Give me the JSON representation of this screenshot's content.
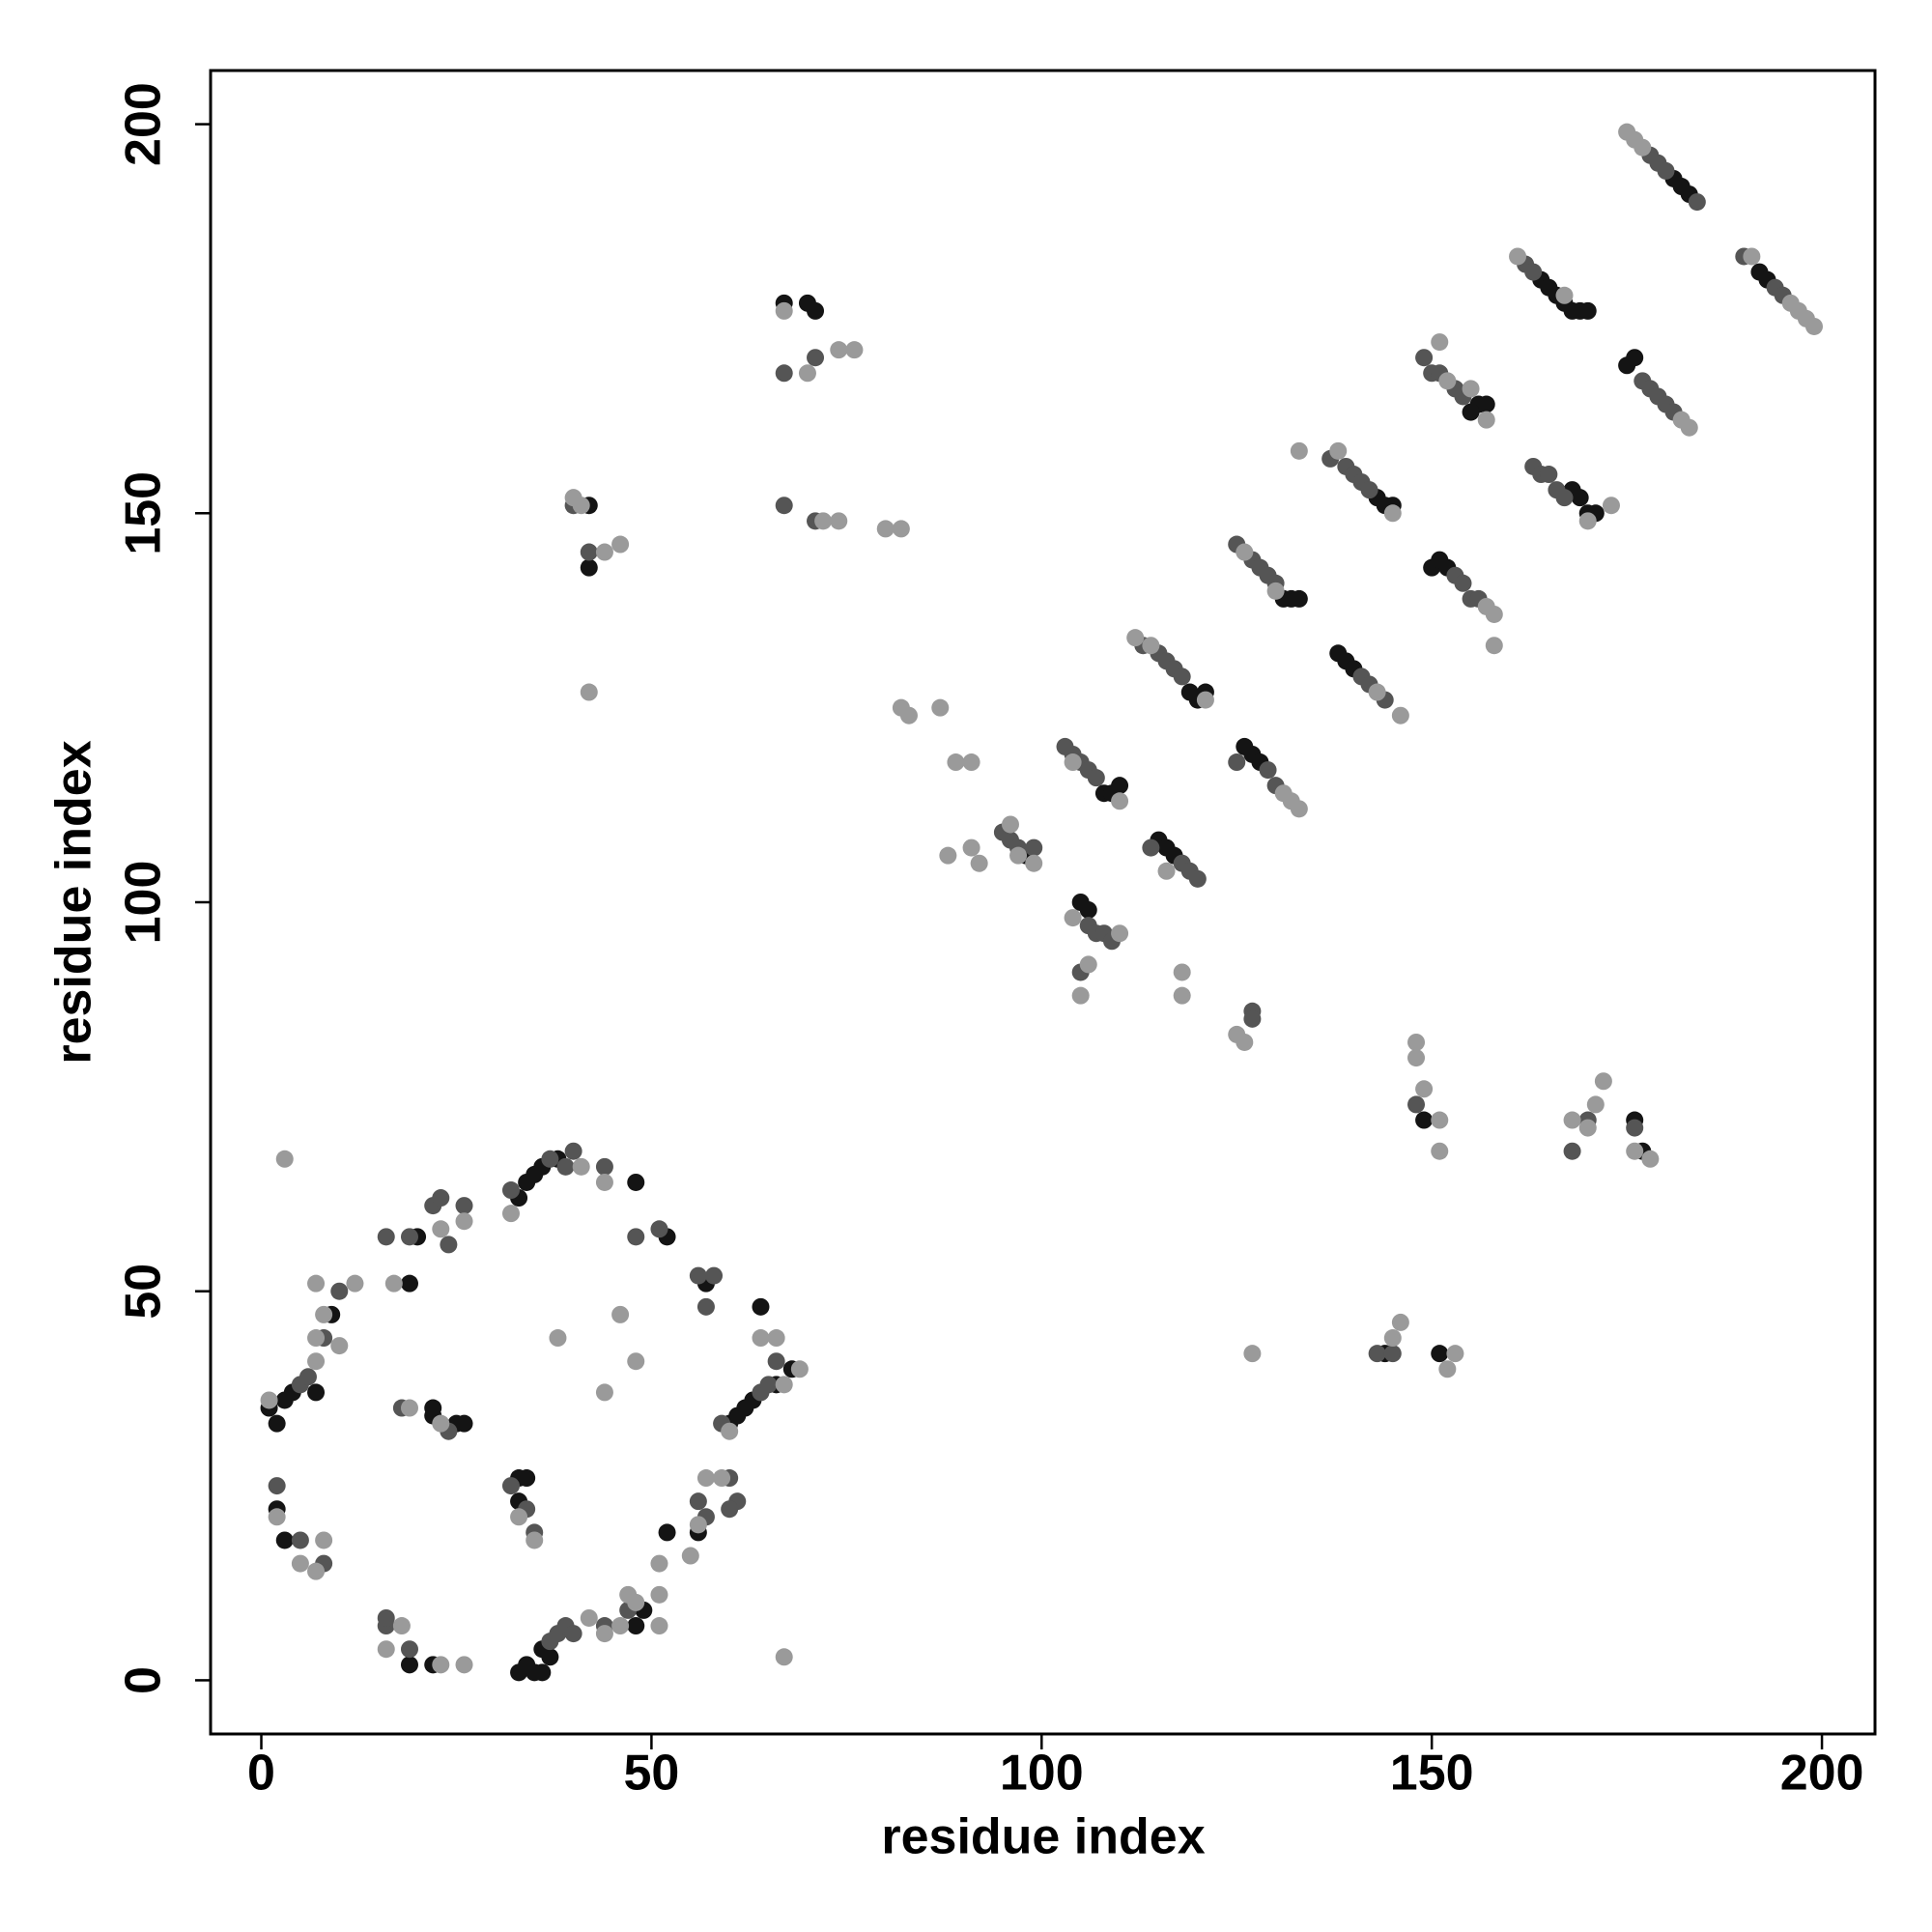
{
  "chart_data": {
    "type": "scatter",
    "xlabel": "residue index",
    "ylabel": "residue index",
    "xlim": [
      -6.5,
      206.8
    ],
    "ylim": [
      -6.9,
      206.9
    ],
    "xticks": [
      0,
      50,
      100,
      150,
      200
    ],
    "yticks": [
      0,
      50,
      100,
      150,
      200
    ],
    "series": [
      {
        "color": "#141414",
        "x": [
          181,
          182,
          183,
          192,
          193,
          164,
          165,
          166,
          167,
          168,
          169,
          170,
          156,
          157,
          155,
          175,
          176,
          143,
          144,
          145,
          168,
          169,
          170,
          171,
          131,
          132,
          133,
          150,
          151,
          152,
          119,
          120,
          121,
          138,
          139,
          140,
          108,
          109,
          110,
          126,
          127,
          128,
          115,
          116,
          117,
          98,
          106,
          105,
          67,
          70,
          71,
          42,
          42,
          33,
          34,
          35,
          36,
          36,
          37,
          1,
          2,
          3,
          4,
          33,
          34,
          33,
          25,
          26,
          22,
          22,
          20,
          19,
          33,
          34,
          35,
          36,
          38,
          48,
          52,
          57,
          64,
          60,
          61,
          62,
          63,
          66,
          68,
          56,
          52,
          3,
          2,
          19,
          22,
          48,
          49,
          176,
          177,
          151,
          144,
          149,
          7,
          9
        ],
        "values": [
          193,
          192,
          191,
          181,
          180,
          180,
          179,
          178,
          177,
          176,
          176,
          176,
          164,
          164,
          163,
          169,
          170,
          152,
          151,
          151,
          153,
          152,
          150,
          150,
          139,
          139,
          139,
          143,
          144,
          143,
          127,
          126,
          127,
          132,
          131,
          130,
          114,
          114,
          115,
          120,
          119,
          118,
          108,
          107,
          106,
          106,
          99,
          100,
          177,
          177,
          176,
          151,
          143,
          1,
          2,
          1,
          1,
          4,
          3,
          35,
          33,
          36,
          37,
          26,
          26,
          23,
          33,
          33,
          35,
          34,
          57,
          51,
          62,
          64,
          65,
          66,
          67,
          64,
          57,
          51,
          48,
          33,
          34,
          35,
          36,
          38,
          40,
          19,
          19,
          18,
          22,
          2,
          2,
          7,
          9,
          72,
          68,
          42,
          42,
          72,
          37,
          47
        ]
      },
      {
        "color": "#555555",
        "x": [
          178,
          179,
          180,
          184,
          190,
          194,
          195,
          162,
          163,
          149,
          150,
          151,
          153,
          154,
          177,
          178,
          179,
          180,
          181,
          137,
          139,
          140,
          141,
          142,
          163,
          164,
          165,
          166,
          167,
          125,
          127,
          128,
          129,
          130,
          153,
          154,
          155,
          156,
          113,
          115,
          116,
          117,
          118,
          141,
          142,
          144,
          103,
          104,
          105,
          106,
          107,
          125,
          129,
          130,
          114,
          118,
          119,
          120,
          95,
          96,
          97,
          99,
          106,
          107,
          108,
          109,
          105,
          127,
          127,
          67,
          71,
          67,
          71,
          42,
          40,
          168,
          170,
          143,
          145,
          148,
          5,
          6,
          8,
          10,
          2,
          5,
          8,
          16,
          16,
          19,
          37,
          38,
          39,
          40,
          44,
          47,
          32,
          34,
          35,
          18,
          24,
          16,
          19,
          22,
          23,
          24,
          26,
          32,
          37,
          39,
          40,
          48,
          51,
          56,
          58,
          57,
          59,
          64,
          65,
          66,
          60,
          61,
          60,
          57,
          56,
          176,
          44
        ],
        "values": [
          196,
          195,
          194,
          190,
          183,
          179,
          178,
          182,
          181,
          170,
          168,
          168,
          166,
          165,
          167,
          166,
          165,
          164,
          163,
          157,
          156,
          155,
          154,
          153,
          156,
          155,
          155,
          153,
          152,
          146,
          144,
          143,
          142,
          141,
          142,
          141,
          139,
          139,
          133,
          132,
          131,
          130,
          129,
          129,
          128,
          126,
          120,
          119,
          118,
          117,
          116,
          118,
          117,
          115,
          107,
          105,
          104,
          103,
          109,
          108,
          107,
          107,
          97,
          96,
          96,
          95,
          91,
          86,
          85,
          168,
          170,
          151,
          149,
          145,
          151,
          68,
          72,
          42,
          42,
          74,
          38,
          39,
          44,
          50,
          25,
          18,
          15,
          7,
          8,
          4,
          5,
          6,
          7,
          6,
          7,
          9,
          25,
          22,
          19,
          35,
          32,
          57,
          57,
          61,
          62,
          56,
          61,
          63,
          67,
          66,
          68,
          57,
          58,
          52,
          52,
          48,
          33,
          37,
          38,
          41,
          26,
          23,
          22,
          21,
          23,
          71,
          66
        ]
      },
      {
        "color": "#9a9a9a",
        "x": [
          175,
          176,
          177,
          191,
          196,
          197,
          198,
          199,
          161,
          167,
          151,
          152,
          155,
          157,
          182,
          183,
          138,
          145,
          170,
          173,
          126,
          133,
          130,
          157,
          158,
          158,
          112,
          114,
          121,
          143,
          146,
          104,
          110,
          131,
          132,
          133,
          116,
          96,
          97,
          99,
          104,
          110,
          105,
          106,
          118,
          118,
          125,
          126,
          89,
          91,
          82,
          83,
          87,
          88,
          91,
          92,
          67,
          74,
          76,
          70,
          72,
          74,
          80,
          82,
          40,
          41,
          44,
          46,
          42,
          148,
          148,
          149,
          151,
          151,
          168,
          171,
          172,
          176,
          127,
          145,
          146,
          152,
          153,
          3,
          7,
          7,
          7,
          8,
          10,
          12,
          2,
          5,
          7,
          8,
          16,
          18,
          26,
          23,
          42,
          44,
          46,
          47,
          51,
          51,
          48,
          33,
          35,
          19,
          23,
          17,
          26,
          23,
          32,
          41,
          44,
          38,
          46,
          44,
          48,
          66,
          64,
          67,
          69,
          60,
          57,
          59,
          55,
          51,
          56,
          67,
          178,
          1,
          170
        ],
        "values": [
          199,
          198,
          197,
          183,
          177,
          176,
          175,
          174,
          183,
          178,
          172,
          167,
          166,
          162,
          162,
          161,
          158,
          150,
          149,
          151,
          145,
          158,
          140,
          138,
          137,
          133,
          134,
          133,
          126,
          127,
          124,
          118,
          113,
          114,
          113,
          112,
          104,
          110,
          106,
          105,
          98,
          96,
          88,
          92,
          91,
          88,
          83,
          82,
          118,
          118,
          125,
          124,
          125,
          106,
          107,
          105,
          176,
          171,
          171,
          168,
          149,
          149,
          148,
          148,
          152,
          151,
          145,
          146,
          127,
          82,
          80,
          76,
          68,
          72,
          72,
          74,
          77,
          68,
          42,
          44,
          46,
          40,
          42,
          67,
          41,
          44,
          51,
          47,
          43,
          51,
          21,
          15,
          14,
          18,
          4,
          7,
          2,
          2,
          8,
          6,
          7,
          11,
          7,
          11,
          10,
          21,
          18,
          35,
          33,
          51,
          59,
          58,
          60,
          66,
          64,
          44,
          47,
          37,
          41,
          44,
          44,
          38,
          40,
          32,
          26,
          26,
          16,
          15,
          20,
          3,
          67,
          36,
          71
        ]
      }
    ]
  }
}
